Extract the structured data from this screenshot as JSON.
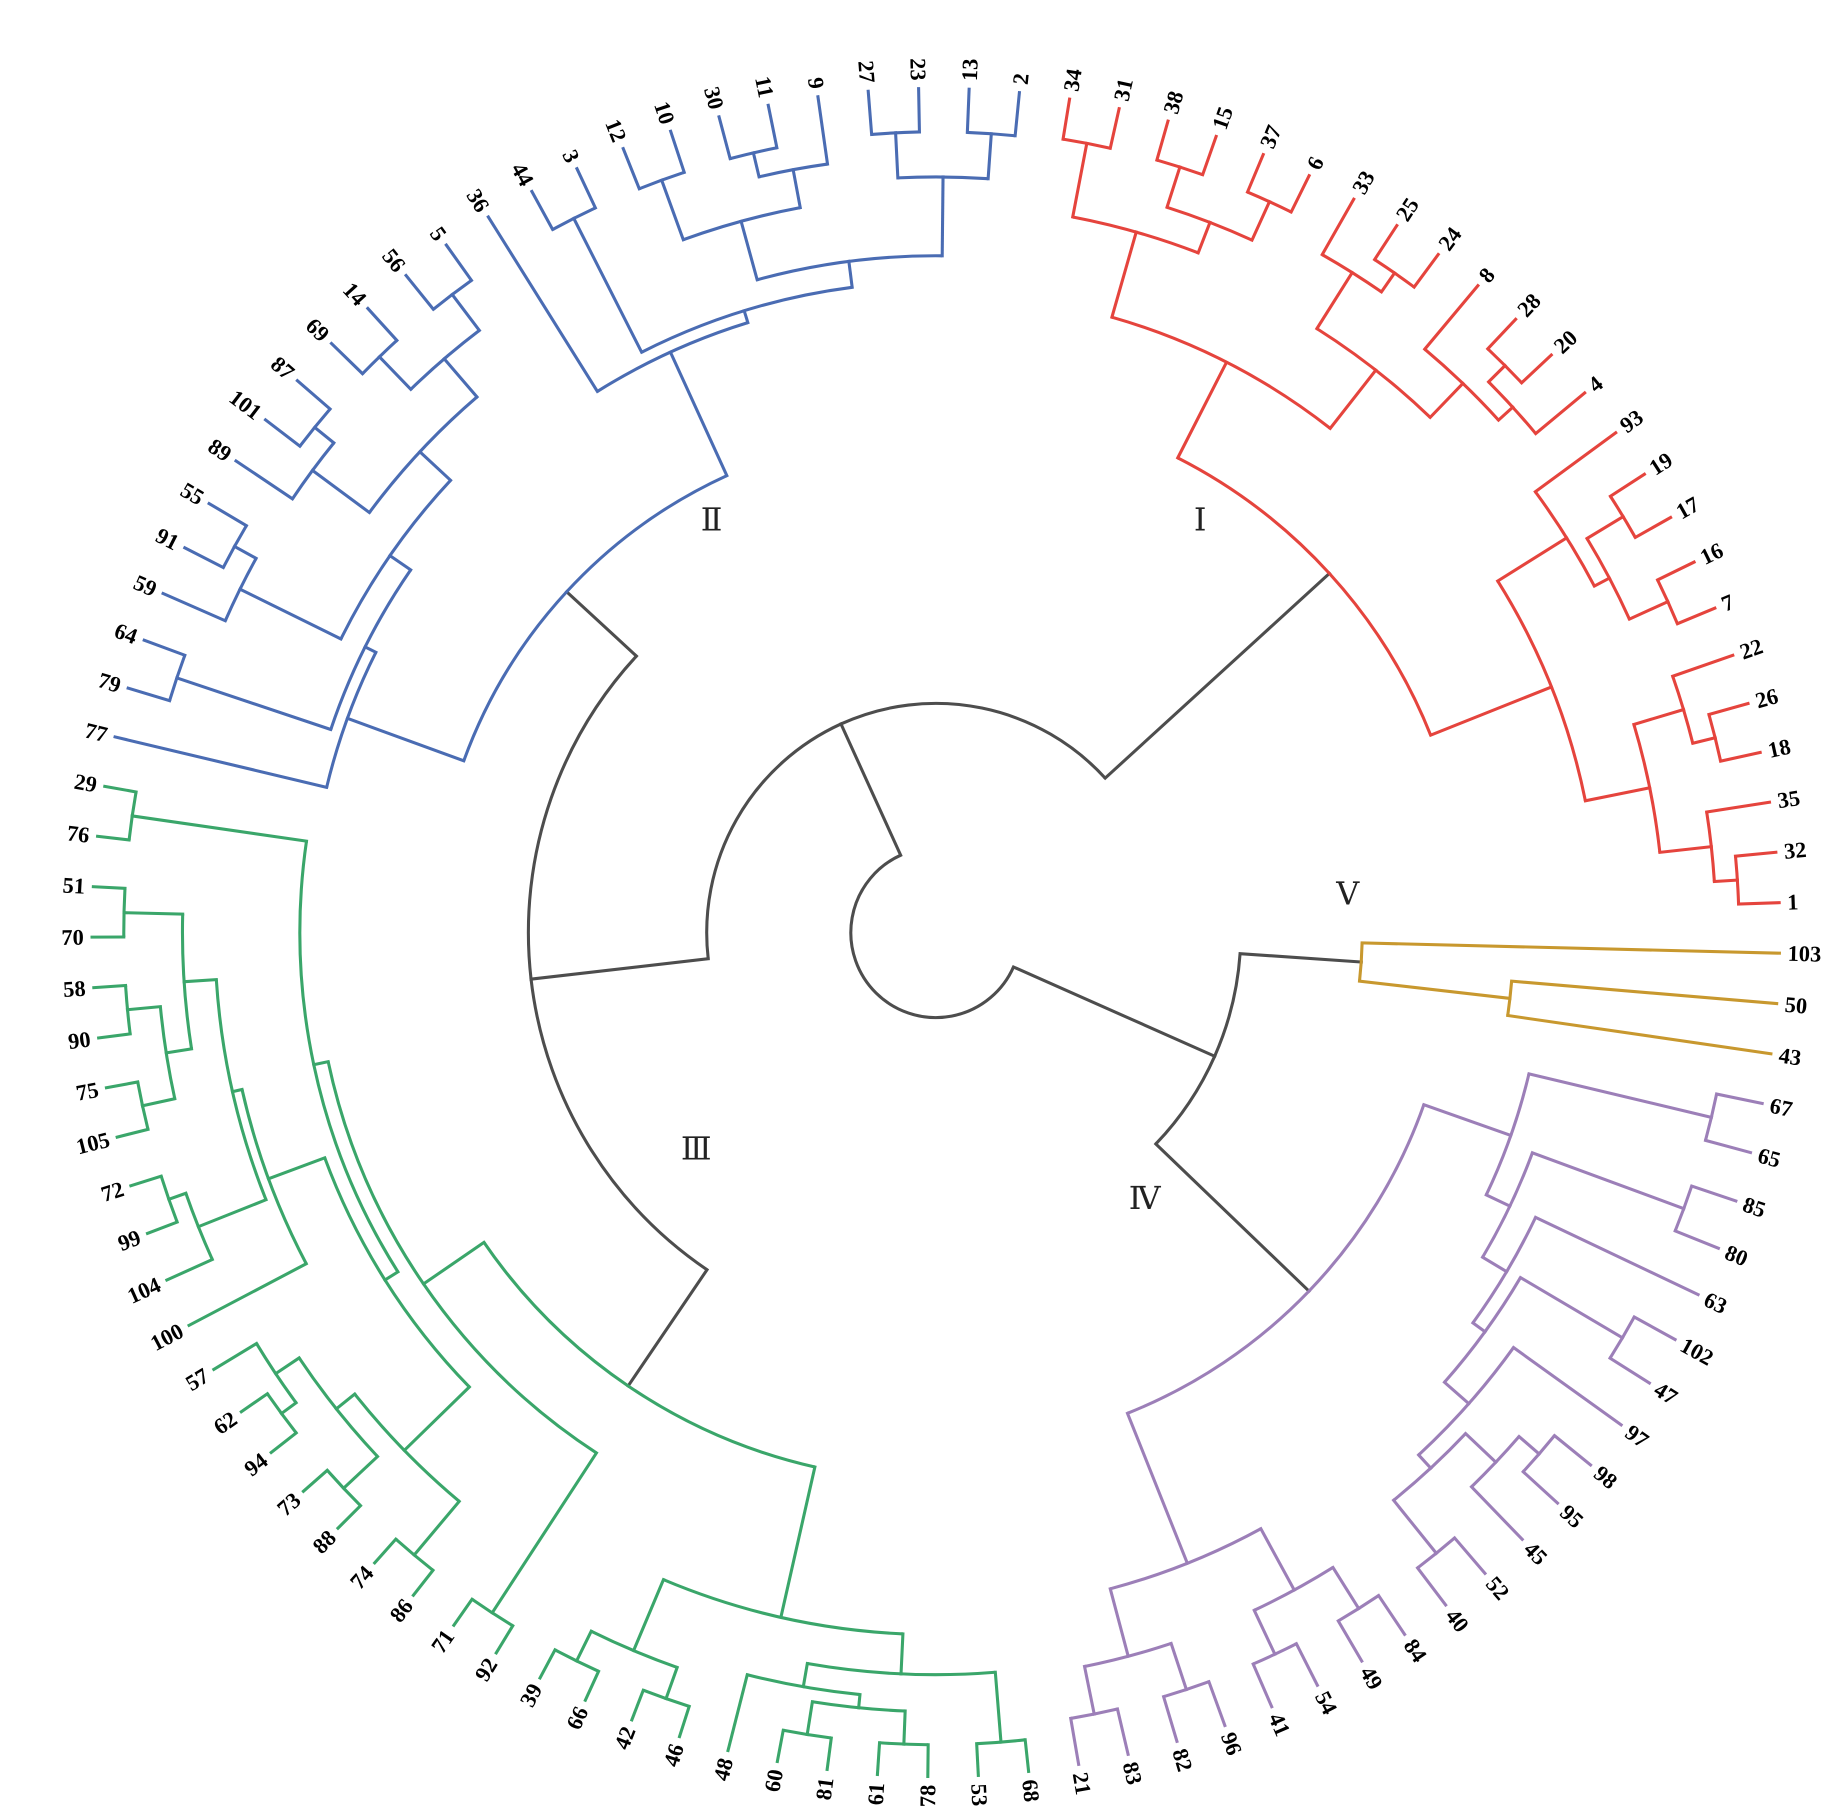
{
  "dendrogram": {
    "layout": "circular",
    "backbone_color": "#4d4d4d",
    "backbone": {
      "height": 1.0,
      "children": [
        {
          "height": 0.71,
          "children": [
            "V",
            "IV"
          ]
        },
        {
          "height": 0.81,
          "children": [
            {
              "height": 0.575,
              "children": [
                "III",
                "II"
              ]
            },
            "I"
          ]
        }
      ]
    },
    "clusters": [
      {
        "id": "I",
        "label": "Ⅰ",
        "color": "#e5443d",
        "height": 0.41,
        "tree": [
          [
            [
              [
                "34",
                "31"
              ],
              [
                [
                  "38",
                  "15"
                ],
                [
                  "37",
                  "6"
                ]
              ]
            ],
            [
              [
                "33",
                [
                  "25",
                  "24"
                ]
              ],
              [
                "8",
                [
                  [
                    "28",
                    "20"
                  ],
                  "4"
                ]
              ]
            ]
          ],
          [
            [
              "93",
              [
                [
                  "19",
                  "17"
                ],
                [
                  "16",
                  "7"
                ]
              ]
            ],
            [
              [
                "22",
                [
                  "26",
                  "18"
                ]
              ],
              [
                "35",
                [
                  "32",
                  "1"
                ]
              ]
            ]
          ]
        ]
      },
      {
        "id": "II",
        "label": "Ⅱ",
        "color": "#4a6cb3",
        "height": 0.45,
        "tree": [
          [
            "77",
            [
              [
                "79",
                "64"
              ],
              [
                [
                  "59",
                  [
                    "91",
                    "55"
                  ]
                ],
                [
                  [
                    "89",
                    [
                      "101",
                      "87"
                    ]
                  ],
                  [
                    [
                      "69",
                      "14"
                    ],
                    [
                      "56",
                      "5"
                    ]
                  ]
                ]
              ]
            ]
          ],
          [
            "36",
            [
              [
                "44",
                "3"
              ],
              [
                [
                  [
                    "12",
                    "10"
                  ],
                  [
                    [
                      "30",
                      "11"
                    ],
                    "9"
                  ]
                ],
                [
                  [
                    "27",
                    "23"
                  ],
                  [
                    "13",
                    "2"
                  ]
                ]
              ]
            ]
          ]
        ]
      },
      {
        "id": "III",
        "label": "Ⅲ",
        "color": "#3aa66a",
        "height": 0.39,
        "tree": [
          [
            [
              [
                "68",
                "53"
              ],
              [
                [
                  [
                    "78",
                    "61"
                  ],
                  [
                    "81",
                    "60"
                  ]
                ],
                "48"
              ]
            ],
            [
              [
                "46",
                "42"
              ],
              [
                "66",
                "39"
              ]
            ]
          ],
          [
            [
              "92",
              "71"
            ],
            [
              [
                [
                  [
                    "86",
                    "74"
                  ],
                  [
                    [
                      "88",
                      "73"
                    ],
                    [
                      [
                        "94",
                        "62"
                      ],
                      "57"
                    ]
                  ]
                ],
                [
                  "100",
                  [
                    [
                      "104",
                      [
                        "99",
                        "72"
                      ]
                    ],
                    [
                      [
                        [
                          "105",
                          "75"
                        ],
                        [
                          "90",
                          "58"
                        ]
                      ],
                      [
                        "70",
                        "51"
                      ]
                    ]
                  ]
                ]
              ],
              [
                "76",
                "29"
              ]
            ]
          ]
        ]
      },
      {
        "id": "IV",
        "label": "Ⅳ",
        "color": "#9c7fb8",
        "height": 0.43,
        "tree": [
          [
            [
              "67",
              "65"
            ],
            [
              [
                "85",
                "80"
              ],
              [
                "63",
                [
                  [
                    "102",
                    "47"
                  ],
                  [
                    "97",
                    [
                      [
                        [
                          "98",
                          "95"
                        ],
                        "45"
                      ],
                      [
                        "52",
                        "40"
                      ]
                    ]
                  ]
                ]
              ]
            ]
          ],
          [
            [
              [
                "84",
                "49"
              ],
              [
                "54",
                "41"
              ]
            ],
            [
              [
                "96",
                "82"
              ],
              [
                "83",
                "21"
              ]
            ]
          ]
        ]
      },
      {
        "id": "V",
        "label": "Ⅴ",
        "color": "#c8982e",
        "height": 0.55,
        "tree": [
          "103",
          [
            "50",
            "43"
          ]
        ]
      }
    ]
  }
}
